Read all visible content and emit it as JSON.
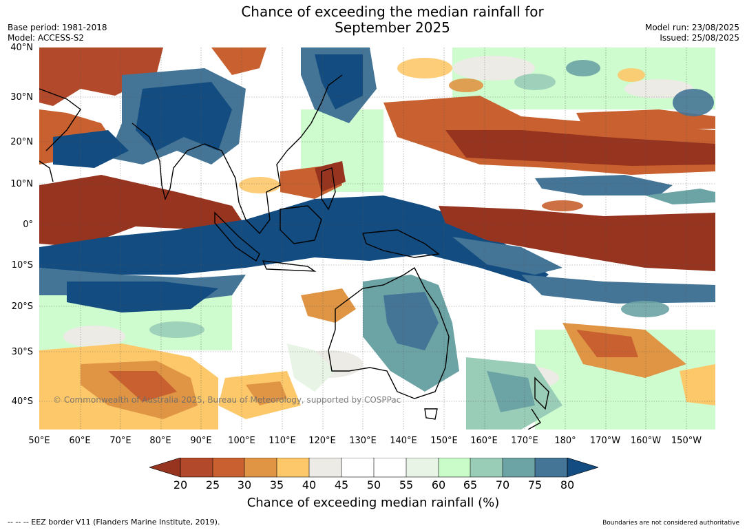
{
  "header": {
    "title_line1": "Chance of exceeding the median rainfall for",
    "title_line2": "September 2025",
    "base_period": "Base period: 1981-2018",
    "model": "Model: ACCESS-S2",
    "model_run": "Model run: 23/08/2025",
    "issued": "Issued: 25/08/2025"
  },
  "map": {
    "lat_labels": [
      "40°N",
      "30°N",
      "20°N",
      "10°N",
      "0°",
      "10°S",
      "20°S",
      "30°S",
      "40°S"
    ],
    "lon_labels": [
      "50°E",
      "60°E",
      "70°E",
      "80°E",
      "90°E",
      "100°E",
      "110°E",
      "120°E",
      "130°E",
      "140°E",
      "150°E",
      "160°E",
      "170°E",
      "180°",
      "170°W",
      "160°W",
      "150°W"
    ],
    "copyright": "© Commonwealth of Australia 2025, Bureau of Meteorology, supported by COSPPac",
    "colors": {
      "c20": "#973420",
      "c25": "#b2492a",
      "c30": "#c8612f",
      "c35": "#e09545",
      "c40": "#fdc86a",
      "c45": "#ecebe5",
      "c50": "#ffffff",
      "c55": "#ffffff",
      "c60": "#e7f4e6",
      "c65": "#c9fcc9",
      "c70": "#9acdb8",
      "c75": "#6ca3a5",
      "c80": "#457596",
      "c85": "#134c80",
      "land": "#000000"
    }
  },
  "colorbar": {
    "ticks": [
      "20",
      "25",
      "30",
      "35",
      "40",
      "45",
      "50",
      "55",
      "60",
      "65",
      "70",
      "75",
      "80"
    ],
    "label": "Chance of exceeding median rainfall (%)"
  },
  "footer": {
    "left": "--  --  -- EEZ border V11 (Flanders Marine Institute, 2019).",
    "right": "Boundaries are not considered authoritative"
  }
}
